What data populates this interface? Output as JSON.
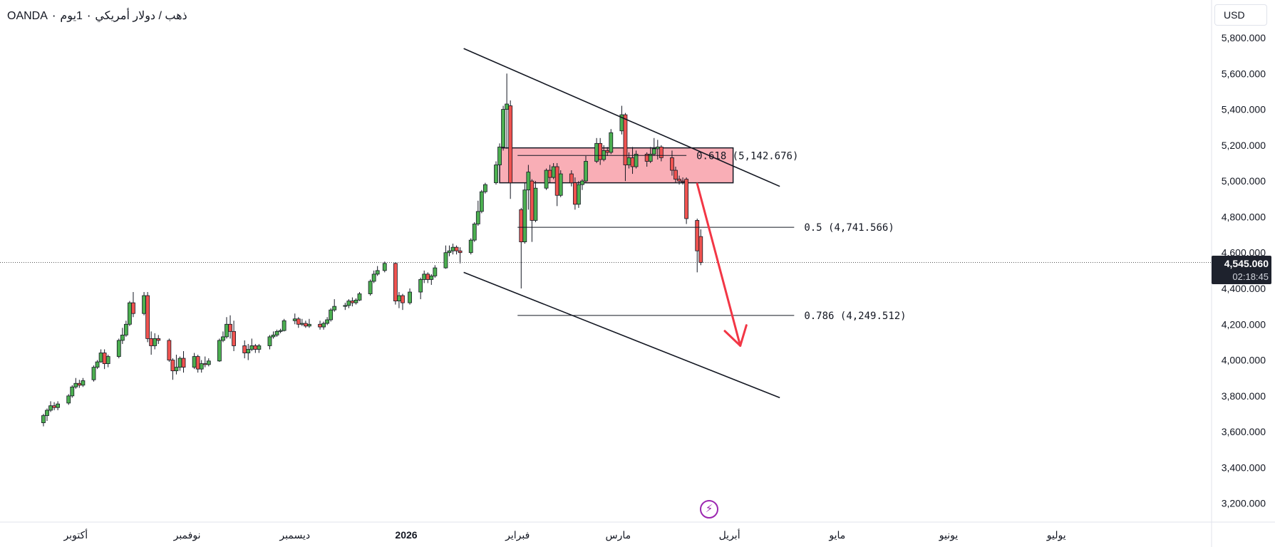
{
  "header": {
    "symbol_title": "ذهب / دولار أمريكي ٠ 1يوم ٠ OANDA",
    "currency_label": "USD"
  },
  "price_badge": {
    "price": "4,545.060",
    "countdown": "02:18:45"
  },
  "flash_icon": "lightning-icon",
  "colors": {
    "up": "#4caf50",
    "down": "#ef5350",
    "zone_fill": "#f8a5ae",
    "arrow": "#f23645",
    "line": "#131722",
    "badge_bg": "#1e222d",
    "purple": "#9c27b0"
  },
  "chart_data": {
    "type": "candlestick",
    "currency": "USD",
    "y_axis": {
      "range": [
        3100,
        5900
      ],
      "ticks": [
        "5,800.000",
        "5,600.000",
        "5,400.000",
        "5,200.000",
        "5,000.000",
        "4,800.000",
        "4,600.000",
        "4,400.000",
        "4,200.000",
        "4,000.000",
        "3,800.000",
        "3,600.000",
        "3,400.000",
        "3,200.000"
      ],
      "tick_values": [
        5800,
        5600,
        5400,
        5200,
        5000,
        4800,
        4600,
        4400,
        4200,
        4000,
        3800,
        3600,
        3400,
        3200
      ]
    },
    "x_axis": {
      "labels": [
        "أكتوبر",
        "نوفمبر",
        "ديسمبر",
        "2026",
        "فبراير",
        "مارس",
        "أبريل",
        "مايو",
        "يونيو",
        "يوليو"
      ],
      "label_dates": [
        "2025-10-01",
        "2025-11-01",
        "2025-12-01",
        "2026-01-01",
        "2026-02-01",
        "2026-03-01",
        "2026-04-01",
        "2026-05-01",
        "2026-06-01",
        "2026-07-01"
      ],
      "range": [
        "2025-09-22",
        "2026-07-28"
      ]
    },
    "current_price": 4545.06,
    "fibonacci_levels": [
      {
        "label": "0.618 (5,142.676)",
        "value": 5142.676,
        "from": "2026-02-01",
        "to": "2026-03-20"
      },
      {
        "label": "0.5 (4,741.566)",
        "value": 4741.566,
        "from": "2026-02-01",
        "to": "2026-04-19"
      },
      {
        "label": "0.786 (4,249.512)",
        "value": 4249.512,
        "from": "2026-02-01",
        "to": "2026-04-19"
      }
    ],
    "resistance_zone": {
      "top": 5185,
      "bottom": 4990,
      "from": "2026-01-27",
      "to": "2026-04-02"
    },
    "channel_upper": {
      "from": {
        "date": "2026-01-17",
        "value": 5740
      },
      "to": {
        "date": "2026-04-15",
        "value": 4970
      }
    },
    "channel_lower": {
      "from": {
        "date": "2026-01-17",
        "value": 4490
      },
      "to": {
        "date": "2026-04-15",
        "value": 3790
      }
    },
    "forecast_arrow": {
      "from": {
        "date": "2026-03-23",
        "value": 4985
      },
      "to": {
        "date": "2026-04-04",
        "value": 4080
      }
    },
    "candles": [
      {
        "date": "2025-09-22",
        "o": 3650,
        "h": 3700,
        "l": 3630,
        "c": 3690
      },
      {
        "date": "2025-09-23",
        "o": 3690,
        "h": 3730,
        "l": 3660,
        "c": 3720
      },
      {
        "date": "2025-09-24",
        "o": 3720,
        "h": 3770,
        "l": 3710,
        "c": 3745
      },
      {
        "date": "2025-09-25",
        "o": 3745,
        "h": 3765,
        "l": 3720,
        "c": 3735
      },
      {
        "date": "2025-09-26",
        "o": 3735,
        "h": 3770,
        "l": 3720,
        "c": 3755
      },
      {
        "date": "2025-09-29",
        "o": 3760,
        "h": 3810,
        "l": 3750,
        "c": 3800
      },
      {
        "date": "2025-09-30",
        "o": 3800,
        "h": 3860,
        "l": 3790,
        "c": 3850
      },
      {
        "date": "2025-10-01",
        "o": 3850,
        "h": 3900,
        "l": 3840,
        "c": 3870
      },
      {
        "date": "2025-10-02",
        "o": 3870,
        "h": 3890,
        "l": 3845,
        "c": 3860
      },
      {
        "date": "2025-10-03",
        "o": 3860,
        "h": 3900,
        "l": 3850,
        "c": 3885
      },
      {
        "date": "2025-10-06",
        "o": 3890,
        "h": 3970,
        "l": 3880,
        "c": 3960
      },
      {
        "date": "2025-10-07",
        "o": 3960,
        "h": 4000,
        "l": 3950,
        "c": 3990
      },
      {
        "date": "2025-10-08",
        "o": 3990,
        "h": 4060,
        "l": 3985,
        "c": 4040
      },
      {
        "date": "2025-10-09",
        "o": 4040,
        "h": 4060,
        "l": 3950,
        "c": 3980
      },
      {
        "date": "2025-10-10",
        "o": 3980,
        "h": 4030,
        "l": 3960,
        "c": 4020
      },
      {
        "date": "2025-10-13",
        "o": 4020,
        "h": 4120,
        "l": 4010,
        "c": 4110
      },
      {
        "date": "2025-10-14",
        "o": 4110,
        "h": 4180,
        "l": 4090,
        "c": 4140
      },
      {
        "date": "2025-10-15",
        "o": 4140,
        "h": 4220,
        "l": 4130,
        "c": 4200
      },
      {
        "date": "2025-10-16",
        "o": 4200,
        "h": 4330,
        "l": 4190,
        "c": 4320
      },
      {
        "date": "2025-10-17",
        "o": 4320,
        "h": 4380,
        "l": 4240,
        "c": 4260
      },
      {
        "date": "2025-10-20",
        "o": 4260,
        "h": 4380,
        "l": 4250,
        "c": 4360
      },
      {
        "date": "2025-10-21",
        "o": 4360,
        "h": 4380,
        "l": 4100,
        "c": 4120
      },
      {
        "date": "2025-10-22",
        "o": 4120,
        "h": 4160,
        "l": 4030,
        "c": 4080
      },
      {
        "date": "2025-10-23",
        "o": 4080,
        "h": 4150,
        "l": 4060,
        "c": 4120
      },
      {
        "date": "2025-10-24",
        "o": 4120,
        "h": 4140,
        "l": 4090,
        "c": 4110
      },
      {
        "date": "2025-10-27",
        "o": 4110,
        "h": 4120,
        "l": 3990,
        "c": 4000
      },
      {
        "date": "2025-10-28",
        "o": 4000,
        "h": 4010,
        "l": 3890,
        "c": 3940
      },
      {
        "date": "2025-10-29",
        "o": 3940,
        "h": 4030,
        "l": 3920,
        "c": 3960
      },
      {
        "date": "2025-10-30",
        "o": 3960,
        "h": 4020,
        "l": 3940,
        "c": 4010
      },
      {
        "date": "2025-10-31",
        "o": 4010,
        "h": 4050,
        "l": 3930,
        "c": 3960
      },
      {
        "date": "2025-11-03",
        "o": 3960,
        "h": 4040,
        "l": 3950,
        "c": 4020
      },
      {
        "date": "2025-11-04",
        "o": 4020,
        "h": 4030,
        "l": 3930,
        "c": 3950
      },
      {
        "date": "2025-11-05",
        "o": 3950,
        "h": 4000,
        "l": 3930,
        "c": 3980
      },
      {
        "date": "2025-11-06",
        "o": 3980,
        "h": 4020,
        "l": 3960,
        "c": 3975
      },
      {
        "date": "2025-11-07",
        "o": 3975,
        "h": 4010,
        "l": 3965,
        "c": 3995
      },
      {
        "date": "2025-11-10",
        "o": 3995,
        "h": 4120,
        "l": 3990,
        "c": 4110
      },
      {
        "date": "2025-11-11",
        "o": 4110,
        "h": 4160,
        "l": 4100,
        "c": 4130
      },
      {
        "date": "2025-11-12",
        "o": 4130,
        "h": 4240,
        "l": 4120,
        "c": 4200
      },
      {
        "date": "2025-11-13",
        "o": 4200,
        "h": 4250,
        "l": 4120,
        "c": 4160
      },
      {
        "date": "2025-11-14",
        "o": 4160,
        "h": 4220,
        "l": 4050,
        "c": 4080
      },
      {
        "date": "2025-11-17",
        "o": 4080,
        "h": 4110,
        "l": 4010,
        "c": 4040
      },
      {
        "date": "2025-11-18",
        "o": 4040,
        "h": 4090,
        "l": 4000,
        "c": 4060
      },
      {
        "date": "2025-11-19",
        "o": 4060,
        "h": 4120,
        "l": 4050,
        "c": 4080
      },
      {
        "date": "2025-11-20",
        "o": 4080,
        "h": 4090,
        "l": 4040,
        "c": 4060
      },
      {
        "date": "2025-11-21",
        "o": 4060,
        "h": 4090,
        "l": 4040,
        "c": 4080
      },
      {
        "date": "2025-11-24",
        "o": 4080,
        "h": 4140,
        "l": 4060,
        "c": 4130
      },
      {
        "date": "2025-11-25",
        "o": 4130,
        "h": 4160,
        "l": 4120,
        "c": 4140
      },
      {
        "date": "2025-11-26",
        "o": 4140,
        "h": 4170,
        "l": 4130,
        "c": 4160
      },
      {
        "date": "2025-11-27",
        "o": 4160,
        "h": 4175,
        "l": 4150,
        "c": 4165
      },
      {
        "date": "2025-11-28",
        "o": 4165,
        "h": 4230,
        "l": 4160,
        "c": 4220
      },
      {
        "date": "2025-12-01",
        "o": 4220,
        "h": 4260,
        "l": 4200,
        "c": 4230
      },
      {
        "date": "2025-12-02",
        "o": 4230,
        "h": 4240,
        "l": 4180,
        "c": 4200
      },
      {
        "date": "2025-12-03",
        "o": 4200,
        "h": 4230,
        "l": 4190,
        "c": 4205
      },
      {
        "date": "2025-12-04",
        "o": 4205,
        "h": 4220,
        "l": 4180,
        "c": 4190
      },
      {
        "date": "2025-12-05",
        "o": 4190,
        "h": 4230,
        "l": 4180,
        "c": 4200
      },
      {
        "date": "2025-12-08",
        "o": 4200,
        "h": 4220,
        "l": 4170,
        "c": 4185
      },
      {
        "date": "2025-12-09",
        "o": 4185,
        "h": 4215,
        "l": 4170,
        "c": 4205
      },
      {
        "date": "2025-12-10",
        "o": 4205,
        "h": 4240,
        "l": 4195,
        "c": 4225
      },
      {
        "date": "2025-12-11",
        "o": 4225,
        "h": 4290,
        "l": 4215,
        "c": 4280
      },
      {
        "date": "2025-12-12",
        "o": 4280,
        "h": 4340,
        "l": 4270,
        "c": 4300
      },
      {
        "date": "2025-12-15",
        "o": 4300,
        "h": 4320,
        "l": 4280,
        "c": 4305
      },
      {
        "date": "2025-12-16",
        "o": 4305,
        "h": 4340,
        "l": 4290,
        "c": 4330
      },
      {
        "date": "2025-12-17",
        "o": 4330,
        "h": 4350,
        "l": 4300,
        "c": 4320
      },
      {
        "date": "2025-12-18",
        "o": 4320,
        "h": 4345,
        "l": 4310,
        "c": 4335
      },
      {
        "date": "2025-12-19",
        "o": 4335,
        "h": 4380,
        "l": 4330,
        "c": 4370
      },
      {
        "date": "2025-12-22",
        "o": 4370,
        "h": 4450,
        "l": 4360,
        "c": 4440
      },
      {
        "date": "2025-12-23",
        "o": 4440,
        "h": 4500,
        "l": 4430,
        "c": 4480
      },
      {
        "date": "2025-12-24",
        "o": 4480,
        "h": 4525,
        "l": 4470,
        "c": 4500
      },
      {
        "date": "2025-12-26",
        "o": 4500,
        "h": 4550,
        "l": 4490,
        "c": 4540
      },
      {
        "date": "2025-12-29",
        "o": 4540,
        "h": 4545,
        "l": 4310,
        "c": 4330
      },
      {
        "date": "2025-12-30",
        "o": 4330,
        "h": 4380,
        "l": 4290,
        "c": 4360
      },
      {
        "date": "2025-12-31",
        "o": 4360,
        "h": 4370,
        "l": 4280,
        "c": 4320
      },
      {
        "date": "2026-01-02",
        "o": 4320,
        "h": 4400,
        "l": 4310,
        "c": 4380
      },
      {
        "date": "2026-01-05",
        "o": 4380,
        "h": 4460,
        "l": 4340,
        "c": 4450
      },
      {
        "date": "2026-01-06",
        "o": 4450,
        "h": 4500,
        "l": 4430,
        "c": 4480
      },
      {
        "date": "2026-01-07",
        "o": 4480,
        "h": 4490,
        "l": 4430,
        "c": 4450
      },
      {
        "date": "2026-01-08",
        "o": 4450,
        "h": 4480,
        "l": 4420,
        "c": 4470
      },
      {
        "date": "2026-01-09",
        "o": 4470,
        "h": 4530,
        "l": 4460,
        "c": 4515
      },
      {
        "date": "2026-01-12",
        "o": 4515,
        "h": 4640,
        "l": 4510,
        "c": 4600
      },
      {
        "date": "2026-01-13",
        "o": 4600,
        "h": 4640,
        "l": 4580,
        "c": 4610
      },
      {
        "date": "2026-01-14",
        "o": 4610,
        "h": 4650,
        "l": 4590,
        "c": 4630
      },
      {
        "date": "2026-01-15",
        "o": 4630,
        "h": 4640,
        "l": 4590,
        "c": 4610
      },
      {
        "date": "2026-01-16",
        "o": 4610,
        "h": 4630,
        "l": 4540,
        "c": 4600
      },
      {
        "date": "2026-01-19",
        "o": 4600,
        "h": 4680,
        "l": 4590,
        "c": 4670
      },
      {
        "date": "2026-01-20",
        "o": 4670,
        "h": 4770,
        "l": 4660,
        "c": 4760
      },
      {
        "date": "2026-01-21",
        "o": 4760,
        "h": 4890,
        "l": 4750,
        "c": 4830
      },
      {
        "date": "2026-01-22",
        "o": 4830,
        "h": 4950,
        "l": 4820,
        "c": 4940
      },
      {
        "date": "2026-01-23",
        "o": 4940,
        "h": 4990,
        "l": 4930,
        "c": 4980
      },
      {
        "date": "2026-01-26",
        "o": 4990,
        "h": 5110,
        "l": 4980,
        "c": 5090
      },
      {
        "date": "2026-01-27",
        "o": 5090,
        "h": 5210,
        "l": 5030,
        "c": 5190
      },
      {
        "date": "2026-01-28",
        "o": 5190,
        "h": 5420,
        "l": 5170,
        "c": 5400
      },
      {
        "date": "2026-01-29",
        "o": 5400,
        "h": 5600,
        "l": 5180,
        "c": 5430
      },
      {
        "date": "2026-01-30",
        "o": 5420,
        "h": 5450,
        "l": 4900,
        "c": 4990
      },
      {
        "date": "2026-02-02",
        "o": 4840,
        "h": 4850,
        "l": 4400,
        "c": 4660
      },
      {
        "date": "2026-02-03",
        "o": 4660,
        "h": 4990,
        "l": 4650,
        "c": 4950
      },
      {
        "date": "2026-02-04",
        "o": 4950,
        "h": 5090,
        "l": 4840,
        "c": 5050
      },
      {
        "date": "2026-02-05",
        "o": 5000,
        "h": 5010,
        "l": 4660,
        "c": 4780
      },
      {
        "date": "2026-02-06",
        "o": 4780,
        "h": 5000,
        "l": 4770,
        "c": 4960
      },
      {
        "date": "2026-02-09",
        "o": 4960,
        "h": 5070,
        "l": 4950,
        "c": 5060
      },
      {
        "date": "2026-02-10",
        "o": 5060,
        "h": 5090,
        "l": 4990,
        "c": 5020
      },
      {
        "date": "2026-02-11",
        "o": 5020,
        "h": 5100,
        "l": 5010,
        "c": 5080
      },
      {
        "date": "2026-02-12",
        "o": 5080,
        "h": 5100,
        "l": 4860,
        "c": 4920
      },
      {
        "date": "2026-02-13",
        "o": 4920,
        "h": 5060,
        "l": 4910,
        "c": 5040
      },
      {
        "date": "2026-02-16",
        "o": 5040,
        "h": 5060,
        "l": 4970,
        "c": 4990
      },
      {
        "date": "2026-02-17",
        "o": 4990,
        "h": 5020,
        "l": 4840,
        "c": 4870
      },
      {
        "date": "2026-02-18",
        "o": 4870,
        "h": 5000,
        "l": 4850,
        "c": 4980
      },
      {
        "date": "2026-02-19",
        "o": 4980,
        "h": 5010,
        "l": 4950,
        "c": 5000
      },
      {
        "date": "2026-02-20",
        "o": 5000,
        "h": 5140,
        "l": 4990,
        "c": 5110
      },
      {
        "date": "2026-02-23",
        "o": 5110,
        "h": 5240,
        "l": 5100,
        "c": 5210
      },
      {
        "date": "2026-02-24",
        "o": 5210,
        "h": 5240,
        "l": 5090,
        "c": 5120
      },
      {
        "date": "2026-02-25",
        "o": 5120,
        "h": 5200,
        "l": 5110,
        "c": 5170
      },
      {
        "date": "2026-02-26",
        "o": 5170,
        "h": 5190,
        "l": 5140,
        "c": 5160
      },
      {
        "date": "2026-02-27",
        "o": 5160,
        "h": 5290,
        "l": 5150,
        "c": 5270
      },
      {
        "date": "2026-03-02",
        "o": 5280,
        "h": 5420,
        "l": 5260,
        "c": 5370
      },
      {
        "date": "2026-03-03",
        "o": 5370,
        "h": 5380,
        "l": 5000,
        "c": 5090
      },
      {
        "date": "2026-03-04",
        "o": 5090,
        "h": 5160,
        "l": 5070,
        "c": 5130
      },
      {
        "date": "2026-03-05",
        "o": 5130,
        "h": 5190,
        "l": 5040,
        "c": 5080
      },
      {
        "date": "2026-03-06",
        "o": 5080,
        "h": 5170,
        "l": 5070,
        "c": 5150
      },
      {
        "date": "2026-03-09",
        "o": 5150,
        "h": 5160,
        "l": 5080,
        "c": 5110
      },
      {
        "date": "2026-03-10",
        "o": 5110,
        "h": 5190,
        "l": 5100,
        "c": 5150
      },
      {
        "date": "2026-03-11",
        "o": 5150,
        "h": 5240,
        "l": 5140,
        "c": 5180
      },
      {
        "date": "2026-03-12",
        "o": 5180,
        "h": 5230,
        "l": 5120,
        "c": 5190
      },
      {
        "date": "2026-03-13",
        "o": 5190,
        "h": 5200,
        "l": 5110,
        "c": 5130
      },
      {
        "date": "2026-03-16",
        "o": 5130,
        "h": 5170,
        "l": 5030,
        "c": 5060
      },
      {
        "date": "2026-03-17",
        "o": 5060,
        "h": 5080,
        "l": 4990,
        "c": 5010
      },
      {
        "date": "2026-03-18",
        "o": 5010,
        "h": 5030,
        "l": 4980,
        "c": 5000
      },
      {
        "date": "2026-03-19",
        "o": 5000,
        "h": 5020,
        "l": 4980,
        "c": 4995
      },
      {
        "date": "2026-03-20",
        "o": 5010,
        "h": 5020,
        "l": 4760,
        "c": 4790
      },
      {
        "date": "2026-03-23",
        "o": 4780,
        "h": 4790,
        "l": 4490,
        "c": 4610
      },
      {
        "date": "2026-03-24",
        "o": 4690,
        "h": 4730,
        "l": 4530,
        "c": 4545
      }
    ]
  }
}
